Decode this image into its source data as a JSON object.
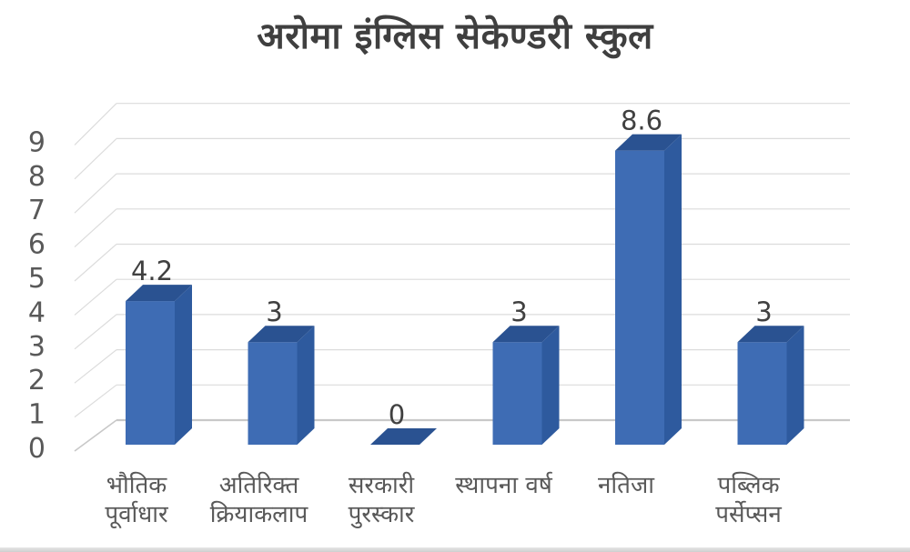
{
  "chart_data": {
    "type": "bar",
    "style": "3d-column",
    "title": "अरोमा इंग्लिस सेकेण्डरी स्कुल",
    "categories": [
      "भौतिक\nपूर्वाधार",
      "अतिरिक्त\nक्रियाकलाप",
      "सरकारी\nपुरस्कार",
      "स्थापना वर्ष",
      "नतिजा",
      "पब्लिक\nपर्सेप्सन"
    ],
    "values": [
      4.2,
      3,
      0,
      3,
      8.6,
      3
    ],
    "data_labels": [
      "4.2",
      "3",
      "0",
      "3",
      "8.6",
      "3"
    ],
    "y_ticks": [
      "0",
      "1",
      "2",
      "3",
      "4",
      "5",
      "6",
      "7",
      "8",
      "9"
    ],
    "ylim": [
      0,
      9
    ],
    "xlabel": "",
    "ylabel": "",
    "grid": true,
    "legend_position": "none",
    "colors": {
      "bar_front": "#3e6cb4",
      "bar_top": "#2a5291",
      "bar_side": "#2e5a9e",
      "gridline": "#dcdcdc",
      "baseline": "#c8c8c8",
      "axis_text": "#595959",
      "data_label_text": "#404040",
      "title_text": "#3f3f3f"
    }
  }
}
